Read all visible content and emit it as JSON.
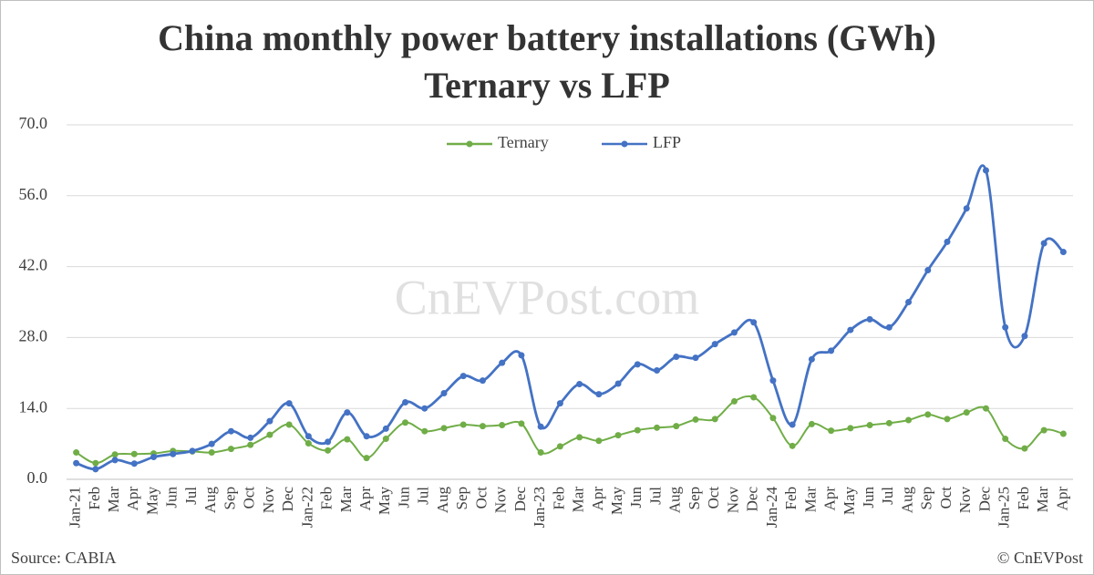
{
  "chart_data": {
    "type": "line",
    "title": "China monthly power battery installations (GWh)",
    "subtitle": "Ternary vs LFP",
    "watermark": "CnEVPost.com",
    "source": "Source: CABIA",
    "credit": "© CnEVPost",
    "categories": [
      "Jan-21",
      "Feb",
      "Mar",
      "Apr",
      "May",
      "Jun",
      "Jul",
      "Aug",
      "Sep",
      "Oct",
      "Nov",
      "Dec",
      "Jan-22",
      "Feb",
      "Mar",
      "Apr",
      "May",
      "Jun",
      "Jul",
      "Aug",
      "Sep",
      "Oct",
      "Nov",
      "Dec",
      "Jan-23",
      "Feb",
      "Mar",
      "Apr",
      "May",
      "Jun",
      "Jul",
      "Aug",
      "Sep",
      "Oct",
      "Nov",
      "Dec",
      "Jan-24",
      "Feb",
      "Mar",
      "Apr",
      "May",
      "Jun",
      "Jul",
      "Aug",
      "Sep",
      "Oct",
      "Nov",
      "Dec",
      "Jan-25",
      "Feb",
      "Mar",
      "Apr"
    ],
    "series": [
      {
        "name": "Ternary",
        "color": "#70ad47",
        "values": [
          5.3,
          3.2,
          4.9,
          5.0,
          5.1,
          5.6,
          5.5,
          5.3,
          6.0,
          6.8,
          8.8,
          10.8,
          7.1,
          5.7,
          7.9,
          4.2,
          8.0,
          11.2,
          9.5,
          10.1,
          10.8,
          10.5,
          10.7,
          11.0,
          5.3,
          6.5,
          8.3,
          7.6,
          8.7,
          9.7,
          10.2,
          10.5,
          11.8,
          11.9,
          15.4,
          16.2,
          12.1,
          6.6,
          10.9,
          9.6,
          10.1,
          10.7,
          11.1,
          11.7,
          12.8,
          11.9,
          13.2,
          14.0,
          8.0,
          6.1,
          9.7,
          9.0
        ]
      },
      {
        "name": "LFP",
        "color": "#4472c4",
        "values": [
          3.2,
          2.0,
          3.8,
          3.1,
          4.4,
          5.0,
          5.6,
          7.0,
          9.5,
          8.2,
          11.5,
          15.0,
          8.5,
          7.4,
          13.2,
          8.5,
          10.0,
          15.2,
          14.0,
          17.0,
          20.4,
          19.5,
          23.0,
          24.5,
          10.4,
          15.0,
          18.8,
          16.8,
          18.9,
          22.7,
          21.5,
          24.2,
          24.0,
          26.7,
          29.0,
          31.0,
          19.5,
          10.8,
          23.7,
          25.4,
          29.5,
          31.6,
          30.0,
          35.0,
          41.3,
          46.9,
          53.5,
          61.0,
          30.0,
          28.3,
          46.6,
          44.9
        ]
      }
    ],
    "ylim": [
      0,
      70
    ],
    "yticks": [
      {
        "value": 0,
        "label": "0.0"
      },
      {
        "value": 14,
        "label": "14.0"
      },
      {
        "value": 28,
        "label": "28.0"
      },
      {
        "value": 42,
        "label": "42.0"
      },
      {
        "value": 56,
        "label": "56.0"
      },
      {
        "value": 70,
        "label": "70.0"
      }
    ],
    "grid": true,
    "legend": "top",
    "smooth": true
  }
}
